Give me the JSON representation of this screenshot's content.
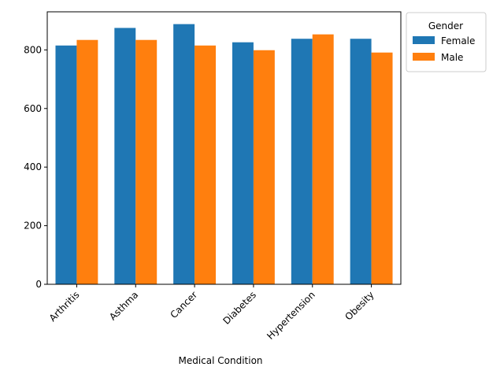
{
  "chart_data": {
    "type": "bar",
    "title": "",
    "xlabel": "Medical Condition",
    "ylabel": "",
    "categories": [
      "Arthritis",
      "Asthma",
      "Cancer",
      "Diabetes",
      "Hypertension",
      "Obesity"
    ],
    "series": [
      {
        "name": "Female",
        "color": "#1f77b4",
        "values": [
          815,
          875,
          888,
          826,
          838,
          838
        ]
      },
      {
        "name": "Male",
        "color": "#ff7f0e",
        "values": [
          834,
          834,
          815,
          799,
          853,
          791
        ]
      }
    ],
    "ylim": [
      0,
      930
    ],
    "yticks": [
      0,
      200,
      400,
      600,
      800
    ],
    "grid": false,
    "legend": {
      "title": "Gender",
      "placement": "outside-top-right"
    }
  }
}
